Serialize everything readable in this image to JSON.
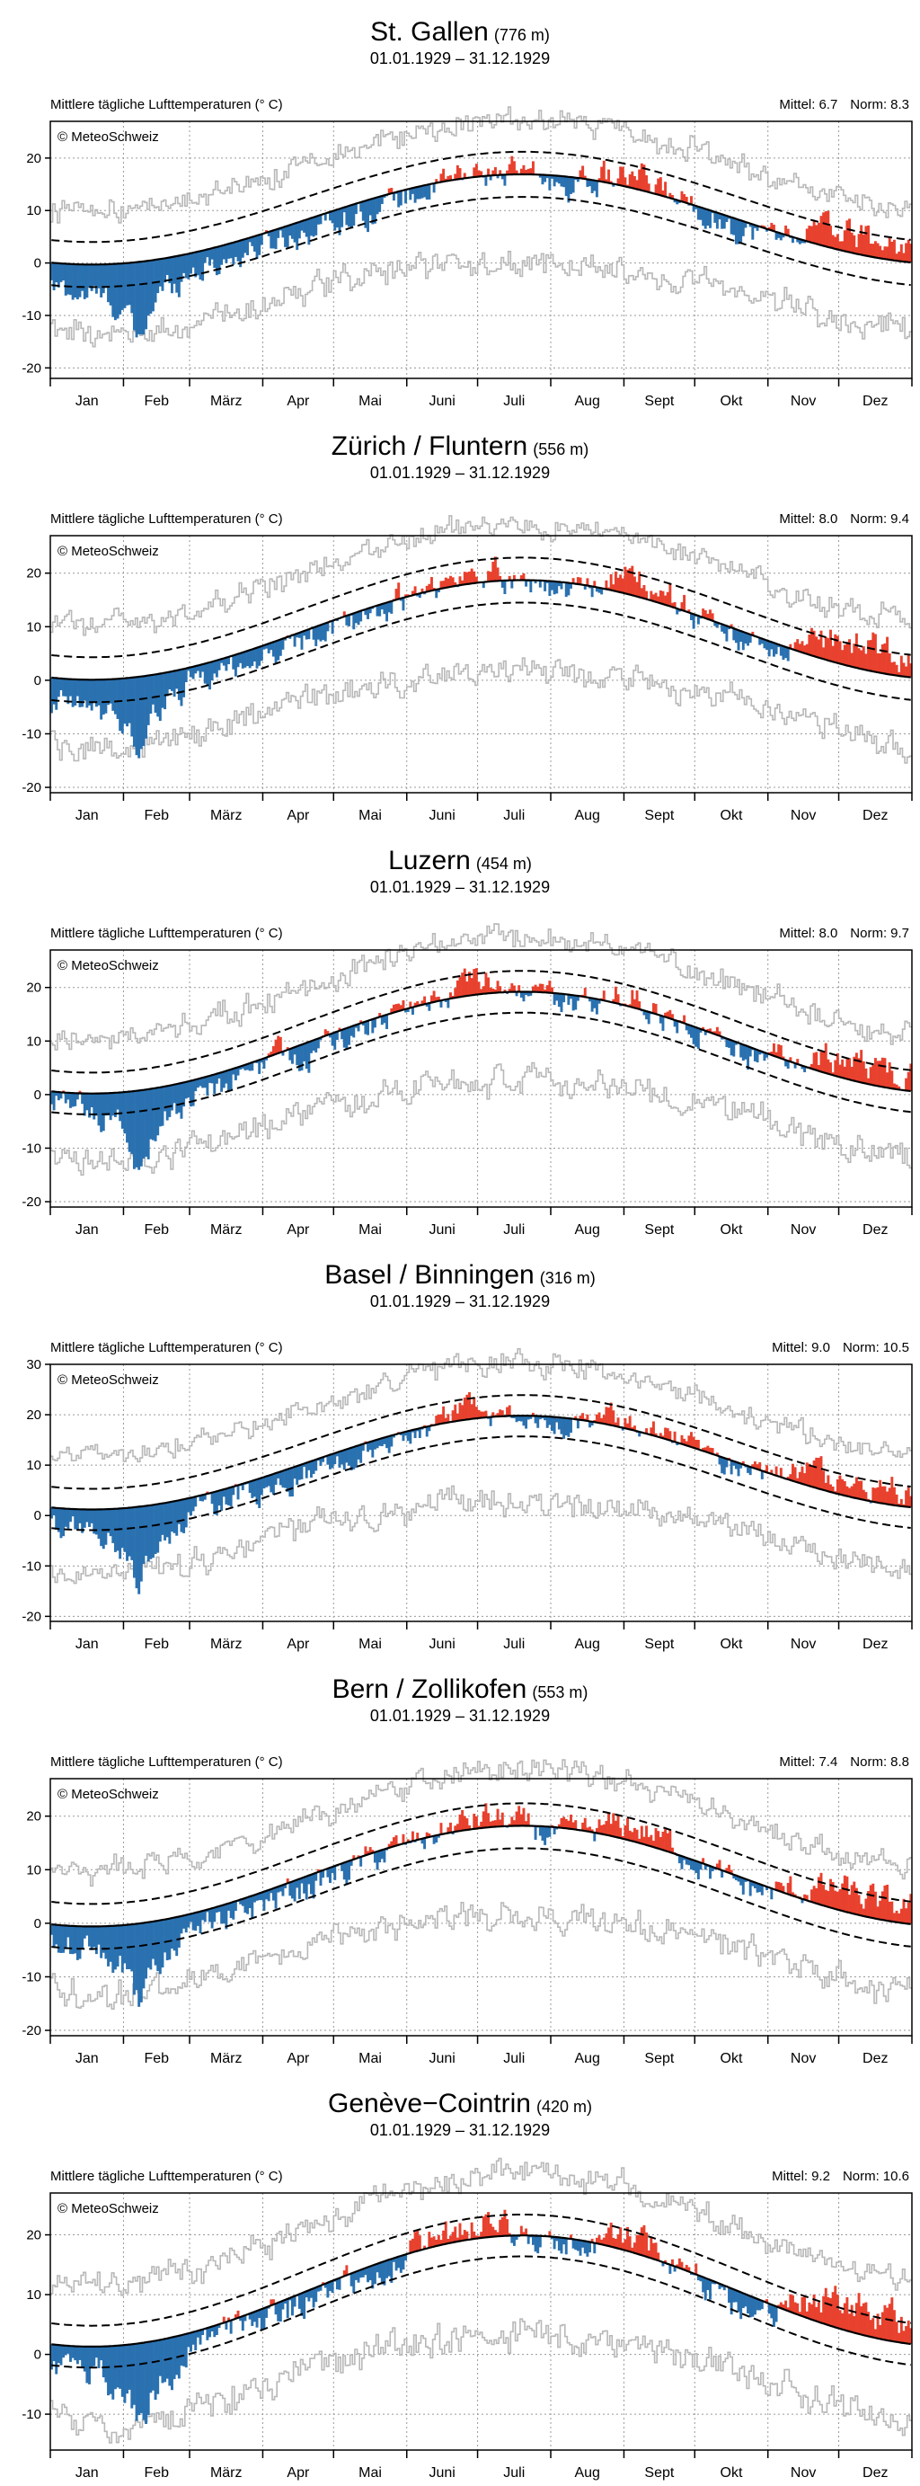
{
  "page": {
    "shared": {
      "period": "01.01.1929 – 31.12.1929",
      "ylabel": "Mittlere tägliche Lufttemperaturen (° C)",
      "copyright": "© MeteoSchweiz",
      "mittel_label": "Mittel:",
      "norm_label": "Norm:",
      "months": [
        "Jan",
        "Feb",
        "März",
        "Apr",
        "Mai",
        "Juni",
        "Juli",
        "Aug",
        "Sept",
        "Okt",
        "Nov",
        "Dez"
      ]
    },
    "stations": [
      {
        "name": "St. Gallen",
        "alt": "(776 m)",
        "mittel": "6.7",
        "norm": "8.3"
      },
      {
        "name": "Zürich / Fluntern",
        "alt": "(556 m)",
        "mittel": "8.0",
        "norm": "9.4"
      },
      {
        "name": "Luzern",
        "alt": "(454 m)",
        "mittel": "8.0",
        "norm": "9.7"
      },
      {
        "name": "Basel / Binningen",
        "alt": "(316 m)",
        "mittel": "9.0",
        "norm": "10.5"
      },
      {
        "name": "Bern / Zollikofen",
        "alt": "(553 m)",
        "mittel": "7.4",
        "norm": "8.8"
      },
      {
        "name": "Genève−Cointrin",
        "alt": "(420 m)",
        "mittel": "9.2",
        "norm": "10.6"
      }
    ]
  },
  "colors": {
    "warm": "#e8412e",
    "cold": "#2a71b0",
    "minmax": "#b8b8b8",
    "grid": "#9a9a9a"
  },
  "chart_data": [
    {
      "type": "bar",
      "ylim": [
        -22,
        27
      ],
      "yticks": [
        -20,
        -10,
        0,
        10,
        20
      ],
      "norm": {
        "mean": 8.3,
        "amp": 8.6
      },
      "band": 4.3,
      "anomalies": {
        "doy": [
          1,
          20,
          32,
          38,
          44,
          52,
          60,
          75,
          95,
          120,
          140,
          160,
          185,
          200,
          215,
          230,
          245,
          260,
          275,
          290,
          305,
          320,
          335,
          350,
          365
        ],
        "values": [
          -5,
          -6,
          -9,
          -16,
          -8,
          -5,
          -3,
          -3,
          -2,
          -2,
          -2,
          -1,
          1,
          0,
          -2,
          0,
          2,
          1,
          0,
          -2,
          -1,
          2,
          4,
          3,
          3
        ]
      }
    },
    {
      "type": "bar",
      "ylim": [
        -21,
        27
      ],
      "yticks": [
        -20,
        -10,
        0,
        10,
        20
      ],
      "norm": {
        "mean": 9.4,
        "amp": 9.3
      },
      "band": 4.2,
      "anomalies": {
        "doy": [
          1,
          20,
          32,
          38,
          44,
          52,
          60,
          75,
          95,
          120,
          140,
          160,
          185,
          200,
          215,
          230,
          245,
          260,
          275,
          290,
          305,
          320,
          335,
          350,
          365
        ],
        "values": [
          -5,
          -6,
          -8,
          -14,
          -8,
          -5,
          -3,
          -2,
          -2,
          -2,
          -1,
          0,
          2,
          0,
          -2,
          0,
          3,
          2,
          0,
          -2,
          -1,
          2,
          4,
          4,
          3
        ]
      }
    },
    {
      "type": "bar",
      "ylim": [
        -21,
        27
      ],
      "yticks": [
        -20,
        -10,
        0,
        10,
        20
      ],
      "norm": {
        "mean": 9.7,
        "amp": 9.5
      },
      "band": 3.9,
      "anomalies": {
        "doy": [
          1,
          20,
          32,
          38,
          44,
          52,
          60,
          75,
          95,
          120,
          140,
          160,
          185,
          200,
          215,
          230,
          245,
          260,
          275,
          290,
          305,
          320,
          335,
          350,
          365
        ],
        "values": [
          -2,
          -3,
          -7,
          -15,
          -8,
          -5,
          -3,
          -2,
          -1,
          -2,
          -1,
          0,
          2,
          0,
          -2,
          -1,
          2,
          1,
          0,
          -2,
          -1,
          1,
          3,
          3,
          3
        ]
      }
    },
    {
      "type": "bar",
      "ylim": [
        -21,
        30
      ],
      "yticks": [
        -20,
        -10,
        0,
        10,
        20,
        30
      ],
      "norm": {
        "mean": 10.5,
        "amp": 9.3
      },
      "band": 4.1,
      "anomalies": {
        "doy": [
          1,
          20,
          32,
          38,
          44,
          52,
          60,
          75,
          95,
          120,
          140,
          160,
          185,
          200,
          215,
          230,
          245,
          260,
          275,
          290,
          305,
          320,
          335,
          350,
          365
        ],
        "values": [
          -3,
          -4,
          -8,
          -15,
          -8,
          -5,
          -3,
          -2,
          -2,
          -2,
          -1,
          0,
          2,
          0,
          -2,
          0,
          3,
          2,
          0,
          -2,
          -1,
          2,
          4,
          4,
          3
        ]
      }
    },
    {
      "type": "bar",
      "ylim": [
        -21,
        27
      ],
      "yticks": [
        -20,
        -10,
        0,
        10,
        20
      ],
      "norm": {
        "mean": 8.8,
        "amp": 9.4
      },
      "band": 4.2,
      "anomalies": {
        "doy": [
          1,
          20,
          32,
          38,
          44,
          52,
          60,
          75,
          95,
          120,
          140,
          160,
          185,
          200,
          215,
          230,
          245,
          260,
          275,
          290,
          305,
          320,
          335,
          350,
          365
        ],
        "values": [
          -4,
          -5,
          -8,
          -16,
          -8,
          -5,
          -3,
          -2,
          -2,
          -2,
          -1,
          0,
          2,
          0,
          -2,
          0,
          3,
          2,
          0,
          -2,
          -1,
          2,
          4,
          3,
          3
        ]
      }
    },
    {
      "type": "bar",
      "ylim": [
        -16,
        27
      ],
      "yticks": [
        -10,
        0,
        10,
        20
      ],
      "norm": {
        "mean": 10.6,
        "amp": 9.3
      },
      "band": 3.5,
      "anomalies": {
        "doy": [
          1,
          20,
          32,
          38,
          44,
          52,
          60,
          75,
          95,
          120,
          140,
          160,
          185,
          200,
          215,
          230,
          245,
          260,
          275,
          290,
          305,
          320,
          335,
          350,
          365
        ],
        "values": [
          -3,
          -4,
          -8,
          -14,
          -8,
          -5,
          -3,
          -2,
          -2,
          -1,
          -1,
          1,
          3,
          0,
          -2,
          0,
          2,
          2,
          0,
          -2,
          -1,
          2,
          4,
          4,
          3
        ]
      }
    }
  ]
}
